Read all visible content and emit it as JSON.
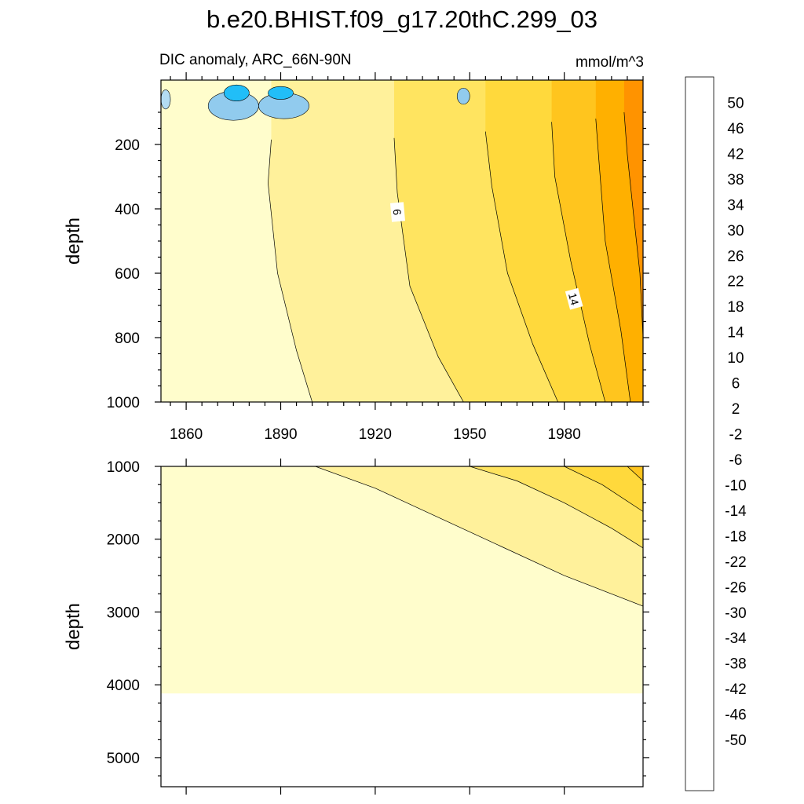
{
  "figure": {
    "title": "b.e20.BHIST.f09_g17.20thC.299_03",
    "subtitle_left": "DIC anomaly, ARC_66N-90N",
    "units": "mmol/m^3"
  },
  "chart_data": {
    "type": "heatmap",
    "title": "b.e20.BHIST.f09_g17.20thC.299_03",
    "variable": "DIC anomaly, ARC_66N-90N",
    "units": "mmol/m^3",
    "x_ticks": [
      1860,
      1890,
      1920,
      1950,
      1980
    ],
    "xlim": [
      1852,
      2005
    ],
    "panels": [
      {
        "name": "upper",
        "ylabel": "depth",
        "ylim": [
          0,
          1000
        ],
        "y_ticks": [
          200,
          400,
          600,
          800,
          1000
        ],
        "contour_labels": [
          {
            "text": "6",
            "year": 1927,
            "depth": 410
          },
          {
            "text": "14",
            "year": 1983,
            "depth": 680
          }
        ]
      },
      {
        "name": "lower",
        "ylabel": "depth",
        "ylim": [
          1000,
          5400
        ],
        "y_ticks": [
          1000,
          2000,
          3000,
          4000,
          5000
        ],
        "ocean_floor_depth": 4120
      }
    ],
    "fields": {
      "upper_isolines": [
        {
          "level": 2,
          "points": [
            [
              1887,
              185
            ],
            [
              1886,
              320
            ],
            [
              1889,
              600
            ],
            [
              1895,
              840
            ],
            [
              1900,
              1000
            ]
          ]
        },
        {
          "level": 6,
          "points": [
            [
              1926,
              180
            ],
            [
              1927,
              350
            ],
            [
              1931,
              640
            ],
            [
              1940,
              860
            ],
            [
              1948,
              1000
            ]
          ]
        },
        {
          "level": 10,
          "points": [
            [
              1955,
              160
            ],
            [
              1957,
              330
            ],
            [
              1962,
              600
            ],
            [
              1970,
              820
            ],
            [
              1978,
              1000
            ]
          ]
        },
        {
          "level": 14,
          "points": [
            [
              1976,
              130
            ],
            [
              1977,
              300
            ],
            [
              1982,
              560
            ],
            [
              1988,
              820
            ],
            [
              1993,
              1000
            ]
          ]
        },
        {
          "level": 18,
          "points": [
            [
              1990,
              120
            ],
            [
              1991,
              250
            ],
            [
              1993,
              500
            ],
            [
              1998,
              780
            ],
            [
              2001,
              1000
            ]
          ]
        },
        {
          "level": 22,
          "points": [
            [
              1999,
              100
            ],
            [
              2000,
              230
            ],
            [
              2002,
              420
            ],
            [
              2004,
              600
            ],
            [
              2005,
              800
            ]
          ]
        }
      ],
      "lower_isolines": [
        {
          "level": 2,
          "points": [
            [
              1901,
              1000
            ],
            [
              1920,
              1300
            ],
            [
              1940,
              1700
            ],
            [
              1960,
              2100
            ],
            [
              1980,
              2500
            ],
            [
              2005,
              2920
            ]
          ]
        },
        {
          "level": 6,
          "points": [
            [
              1950,
              1000
            ],
            [
              1965,
              1200
            ],
            [
              1980,
              1500
            ],
            [
              1995,
              1850
            ],
            [
              2005,
              2120
            ]
          ]
        },
        {
          "level": 10,
          "points": [
            [
              1980,
              1000
            ],
            [
              1992,
              1250
            ],
            [
              2005,
              1620
            ]
          ]
        },
        {
          "level": 14,
          "points": [
            [
              2000,
              1000
            ],
            [
              2005,
              1200
            ]
          ]
        }
      ],
      "surface_negative_patches": [
        {
          "level": -6,
          "year": 1853.5,
          "depth": 60,
          "year_radius": 1.5,
          "depth_radius": 30
        },
        {
          "level": -10,
          "year": 1875,
          "depth": 80,
          "year_radius": 8,
          "depth_radius": 45
        },
        {
          "level": -18,
          "year": 1876,
          "depth": 40,
          "year_radius": 4,
          "depth_radius": 25
        },
        {
          "level": -10,
          "year": 1891,
          "depth": 80,
          "year_radius": 8,
          "depth_radius": 40
        },
        {
          "level": -18,
          "year": 1890,
          "depth": 40,
          "year_radius": 4,
          "depth_radius": 20
        },
        {
          "level": -10,
          "year": 1948,
          "depth": 50,
          "year_radius": 2,
          "depth_radius": 25
        }
      ]
    },
    "colorbar": {
      "labels": [
        "50",
        "46",
        "42",
        "38",
        "34",
        "30",
        "26",
        "22",
        "18",
        "14",
        "10",
        "6",
        "2",
        "-2",
        "-6",
        "-10",
        "-14",
        "-18",
        "-22",
        "-26",
        "-30",
        "-34",
        "-38",
        "-42",
        "-46",
        "-50"
      ],
      "colors": [
        "#f9b4b4",
        "#e45454",
        "#cc1a1a",
        "#dd0000",
        "#f50000",
        "#ff2b00",
        "#ff5500",
        "#ff7400",
        "#ff9300",
        "#ffb000",
        "#ffc51e",
        "#ffd93c",
        "#ffe460",
        "#fff19b",
        "#fffdcc",
        "#b3dcf2",
        "#91cbee",
        "#5ec2f5",
        "#21bef8",
        "#05a9f9",
        "#1d90f7",
        "#2f7bf0",
        "#3b68e6",
        "#3558e0",
        "#1c2fee",
        "#0a0ef7",
        "#5515f5",
        "#8a2ee3"
      ]
    }
  }
}
